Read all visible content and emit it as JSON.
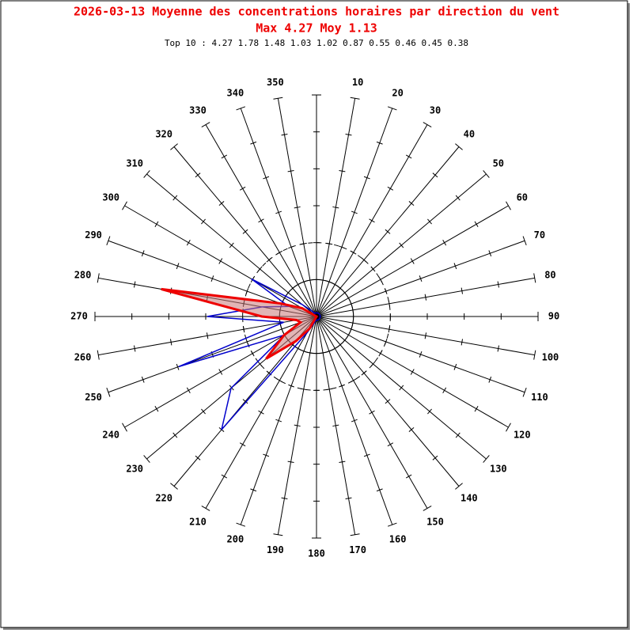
{
  "chart_data": {
    "type": "polar",
    "title": "2026-03-13 Moyenne des concentrations horaires par direction du vent",
    "subtitle": "Max 4.27 Moy 1.13",
    "annotation": "Top 10 : 4.27 1.78 1.48 1.03 1.02 0.87 0.55 0.46 0.45 0.38",
    "categories": [
      null,
      "10",
      "20",
      "30",
      "40",
      "50",
      "60",
      "70",
      "80",
      "90",
      "100",
      "110",
      "120",
      "130",
      "140",
      "150",
      "160",
      "170",
      "180",
      "190",
      "200",
      "210",
      "220",
      "230",
      "240",
      "250",
      "260",
      "270",
      "280",
      "290",
      "300",
      "310",
      "320",
      "330",
      "340",
      "350"
    ],
    "series": [
      {
        "color": "#0000cc",
        "fill": "none",
        "values": [
          0.1,
          0.1,
          0.1,
          0.1,
          0.1,
          0.1,
          0.1,
          0.1,
          0.1,
          0.1,
          0.1,
          0.1,
          0.1,
          0.1,
          0.1,
          0.1,
          0.1,
          0.1,
          0.1,
          0.1,
          0.2,
          0.5,
          4.0,
          3.02,
          1.0,
          3.97,
          0.9,
          2.96,
          1.5,
          0.8,
          2.04,
          0.5,
          0.2,
          0.1,
          0.1,
          0.1
        ]
      },
      {
        "color": "#ee0000",
        "fill": "rgba(200,120,120,0.55)",
        "values": [
          0,
          0,
          0,
          0,
          0,
          0,
          0,
          0,
          0,
          0,
          0,
          0,
          0,
          0,
          0,
          0,
          0,
          0,
          0,
          0,
          0,
          0.38,
          0.87,
          1.78,
          1.02,
          0.46,
          0.55,
          1.48,
          4.27,
          1.03,
          0.45,
          0,
          0,
          0,
          0,
          0
        ]
      }
    ],
    "rlim": [
      0,
      6
    ],
    "rticks": [
      1,
      2,
      3,
      4,
      5,
      6
    ]
  }
}
